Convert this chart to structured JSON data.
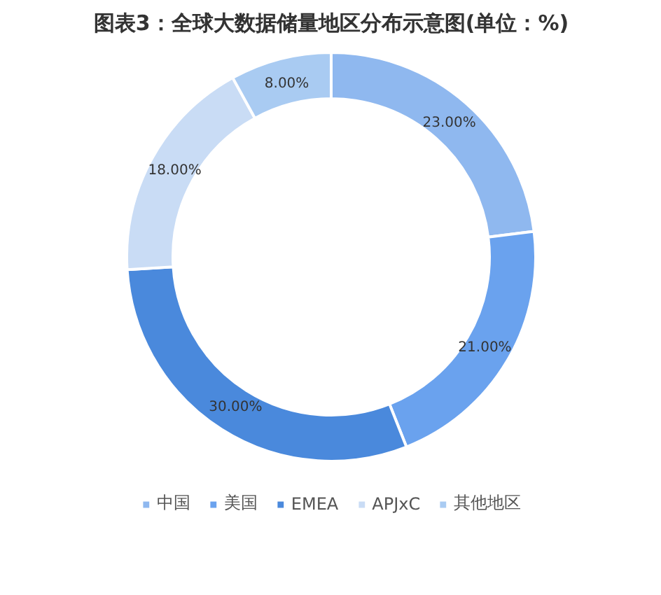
{
  "chart_data": {
    "type": "donut",
    "title": "图表3：全球大数据储量地区分布示意图(单位：%)",
    "categories": [
      "中国",
      "美国",
      "EMEA",
      "APJxC",
      "其他地区"
    ],
    "values": [
      23,
      21,
      30,
      18,
      8
    ],
    "colors": [
      "#8fb8ef",
      "#6aa2ee",
      "#4a89dc",
      "#c9dcf5",
      "#a9cbf2"
    ],
    "value_labels": [
      "23.00%",
      "21.00%",
      "30.00%",
      "18.00%",
      "8.00%"
    ],
    "legend": "bottom"
  }
}
